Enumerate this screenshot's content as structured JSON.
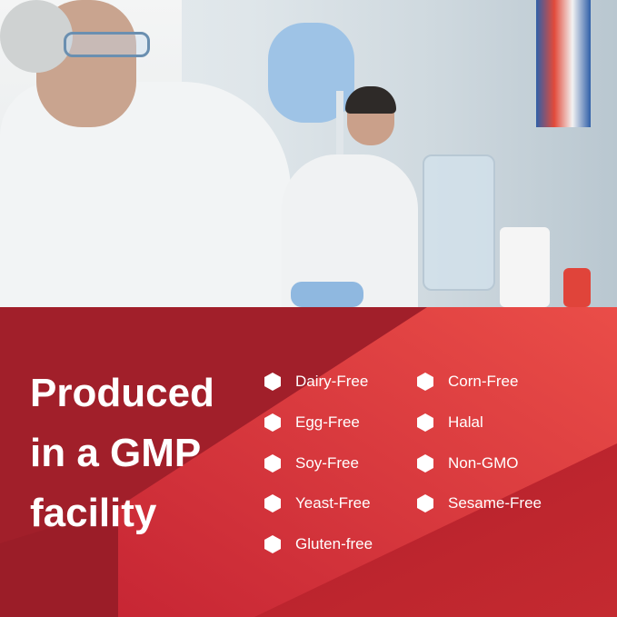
{
  "headline": "Produced in a GMP facility",
  "features": [
    {
      "label": "Dairy-Free",
      "icon": "hexagon-icon"
    },
    {
      "label": "Egg-Free",
      "icon": "hexagon-icon"
    },
    {
      "label": "Soy-Free",
      "icon": "hexagon-icon"
    },
    {
      "label": "Yeast-Free",
      "icon": "hexagon-icon"
    },
    {
      "label": "Gluten-free",
      "icon": "hexagon-icon"
    },
    {
      "label": "Corn-Free",
      "icon": "hexagon-icon"
    },
    {
      "label": "Halal",
      "icon": "hexagon-icon"
    },
    {
      "label": "Non-GMO",
      "icon": "hexagon-icon"
    },
    {
      "label": "Sesame-Free",
      "icon": "hexagon-icon"
    }
  ],
  "colors": {
    "panel_dark": "#a8202b",
    "panel_mid": "#cf2a38",
    "panel_light": "#e84b47"
  }
}
